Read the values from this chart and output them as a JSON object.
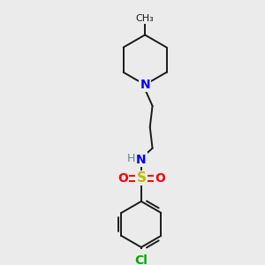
{
  "bg_color": "#ebebeb",
  "bond_color": "#1a1a1a",
  "bond_lw": 1.4,
  "N_color": "#0000ff",
  "O_color": "#ff0000",
  "S_color": "#bbbb00",
  "Cl_color": "#00aa00",
  "H_color": "#5a8a8a",
  "figsize": [
    3.0,
    3.0
  ],
  "dpi": 100,
  "xlim": [
    0,
    10
  ],
  "ylim": [
    0,
    10
  ]
}
